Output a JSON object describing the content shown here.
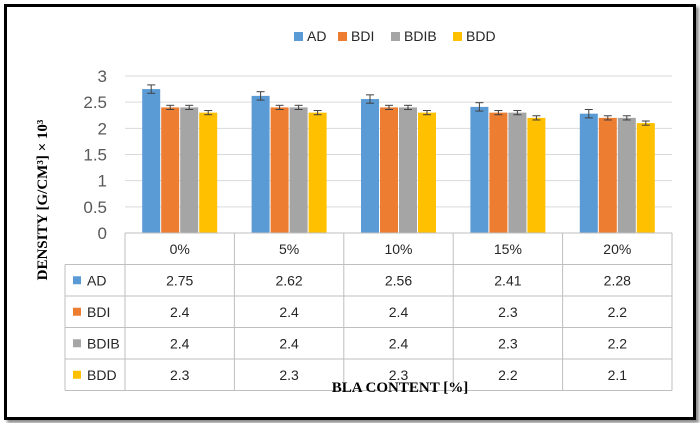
{
  "chart_data": {
    "type": "bar",
    "categories": [
      "0%",
      "5%",
      "10%",
      "15%",
      "20%"
    ],
    "series": [
      {
        "name": "AD",
        "color": "#5B9BD5",
        "values": [
          2.75,
          2.62,
          2.56,
          2.41,
          2.28
        ],
        "error": [
          0.08,
          0.08,
          0.08,
          0.08,
          0.08
        ]
      },
      {
        "name": "BDI",
        "color": "#ED7D31",
        "values": [
          2.4,
          2.4,
          2.4,
          2.3,
          2.2
        ],
        "error": [
          0.04,
          0.04,
          0.04,
          0.04,
          0.04
        ]
      },
      {
        "name": "BDIB",
        "color": "#A5A5A5",
        "values": [
          2.4,
          2.4,
          2.4,
          2.3,
          2.2
        ],
        "error": [
          0.04,
          0.04,
          0.04,
          0.04,
          0.04
        ]
      },
      {
        "name": "BDD",
        "color": "#FFC000",
        "values": [
          2.3,
          2.3,
          2.3,
          2.2,
          2.1
        ],
        "error": [
          0.04,
          0.04,
          0.04,
          0.04,
          0.04
        ]
      }
    ],
    "yticks": [
      "0",
      "0.5",
      "1",
      "1.5",
      "2",
      "2.5",
      "3"
    ],
    "ylim": [
      0,
      3
    ],
    "xlabel": "BLA CONTENT [%]",
    "ylabel": "DENSITY [G/CM³] × 10³",
    "legend": "top",
    "grid": true,
    "data_table": true
  }
}
